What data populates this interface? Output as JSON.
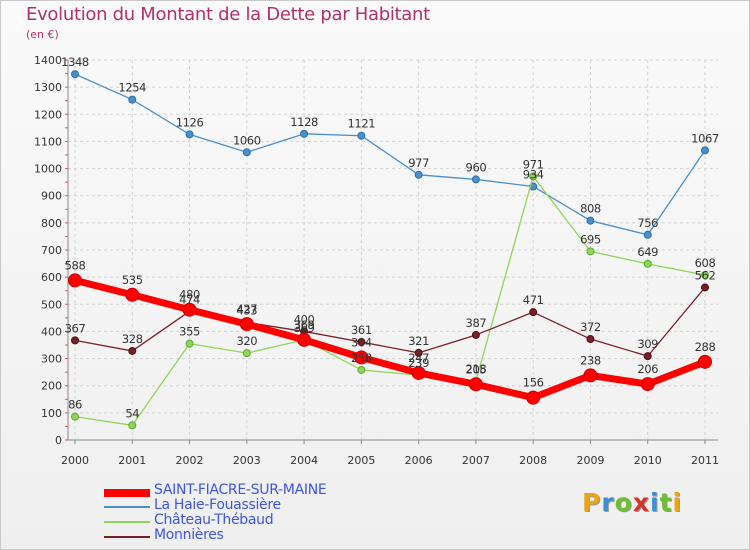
{
  "header": {
    "title": "Evolution du Montant de la Dette par Habitant",
    "unit": "(en €)"
  },
  "logo": {
    "text": "Proxiti",
    "letter_colors": [
      "#e8a51c",
      "#3a8fd6",
      "#6cbf2f",
      "#d6312e",
      "#3a8fd6",
      "#6cbf2f",
      "#e8a51c"
    ]
  },
  "chart_data": {
    "type": "line",
    "title": "Evolution du Montant de la Dette par Habitant",
    "subtitle": "(en €)",
    "xlabel": "",
    "ylabel": "",
    "x": [
      "2000",
      "2001",
      "2002",
      "2003",
      "2004",
      "2005",
      "2006",
      "2007",
      "2008",
      "2009",
      "2010",
      "2011"
    ],
    "ylim": [
      0,
      1400
    ],
    "yticks": [
      0,
      100,
      200,
      300,
      400,
      500,
      600,
      700,
      800,
      900,
      1000,
      1100,
      1200,
      1300,
      1400
    ],
    "grid": true,
    "legend_position": "bottom-left",
    "series": [
      {
        "name": "SAINT-FIACRE-SUR-MAINE",
        "color": "#ff0000",
        "values": [
          588,
          535,
          480,
          427,
          369,
          304,
          247,
          205,
          156,
          238,
          206,
          288
        ]
      },
      {
        "name": "La Haie-Fouassière",
        "color": "#4a90c8",
        "values": [
          1348,
          1254,
          1126,
          1060,
          1128,
          1121,
          977,
          960,
          934,
          808,
          756,
          1067
        ]
      },
      {
        "name": "Château-Thébaud",
        "color": "#8ed65a",
        "values": [
          86,
          54,
          355,
          320,
          369,
          258,
          239,
          218,
          971,
          695,
          649,
          608
        ]
      },
      {
        "name": "Monnières",
        "color": "#7a1f28",
        "values": [
          367,
          328,
          474,
          433,
          400,
          361,
          321,
          387,
          471,
          372,
          309,
          562
        ]
      }
    ]
  }
}
